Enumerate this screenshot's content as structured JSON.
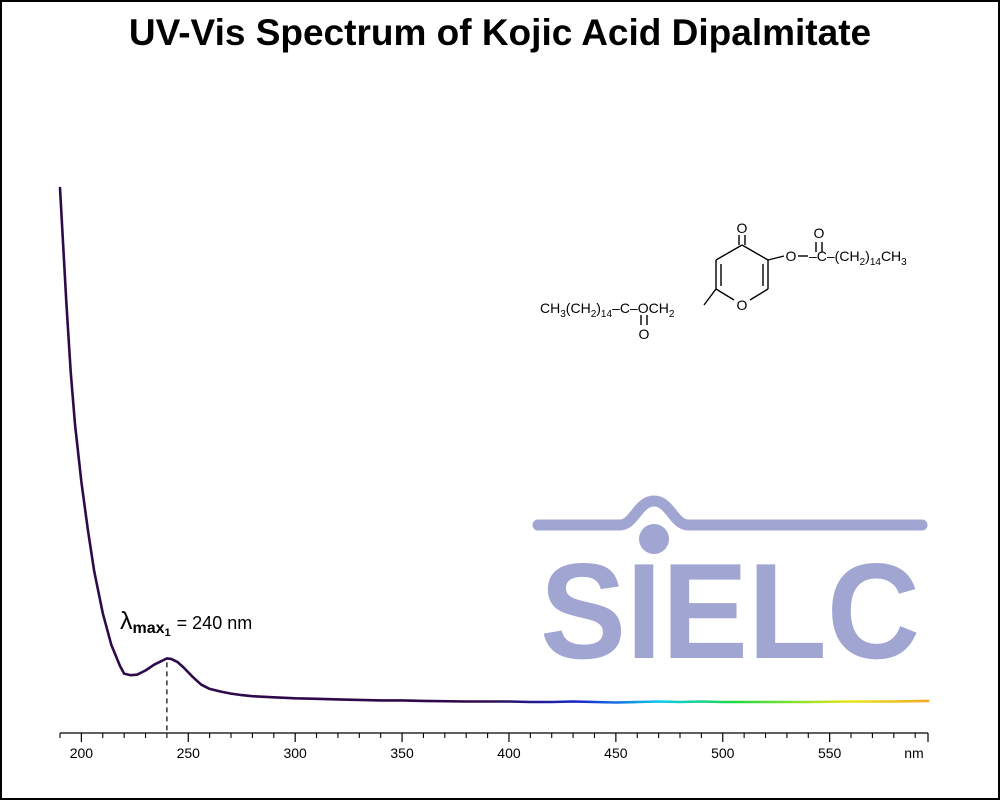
{
  "title": "UV-Vis Spectrum of Kojic Acid Dipalmitate",
  "chart_data": {
    "type": "line",
    "title": "UV-Vis Spectrum of Kojic Acid Dipalmitate",
    "xlabel": "nm",
    "ylabel": "",
    "xlim": [
      190,
      596
    ],
    "ylim": [
      0,
      1.0
    ],
    "x_ticks": [
      200,
      250,
      300,
      350,
      400,
      450,
      500,
      550
    ],
    "x_unit_label": "nm",
    "grid": false,
    "legend": "none",
    "line_colors": {
      "uv": "#2e0a4a",
      "blue": "#1a2bcf",
      "cyan": "#12c8ee",
      "green": "#22d844",
      "yellow": "#e6e61a",
      "orange": "#f5a623"
    },
    "series": [
      {
        "x": [
          190,
          193,
          195,
          197,
          200,
          203,
          206,
          210,
          214,
          218,
          220,
          223,
          226,
          230,
          234,
          238,
          240,
          242,
          245,
          248,
          252,
          256,
          260,
          265,
          270,
          275,
          280,
          290,
          300,
          310,
          320,
          330,
          340,
          350,
          360,
          380,
          400,
          410,
          420,
          430,
          440,
          450,
          460,
          470,
          480,
          490,
          500,
          520,
          540,
          560,
          580,
          596
        ],
        "y": [
          1.0,
          0.78,
          0.65,
          0.55,
          0.44,
          0.35,
          0.27,
          0.19,
          0.13,
          0.09,
          0.075,
          0.072,
          0.073,
          0.081,
          0.092,
          0.1,
          0.104,
          0.103,
          0.097,
          0.086,
          0.069,
          0.054,
          0.046,
          0.041,
          0.037,
          0.034,
          0.032,
          0.03,
          0.028,
          0.027,
          0.026,
          0.025,
          0.024,
          0.024,
          0.023,
          0.022,
          0.022,
          0.021,
          0.021,
          0.022,
          0.021,
          0.02,
          0.021,
          0.022,
          0.021,
          0.022,
          0.021,
          0.021,
          0.021,
          0.022,
          0.022,
          0.023
        ]
      }
    ],
    "annotations": [
      {
        "lambda": "λ",
        "sub_main": "max",
        "sub_index": "1",
        "text": "= 240 nm",
        "x": 240
      }
    ]
  },
  "structure": {
    "left_chain": [
      "CH",
      "3",
      "(CH",
      "2",
      ")",
      "14",
      "–C–OCH",
      "2"
    ],
    "right_chain": [
      "–C–(CH",
      "2",
      ")",
      "14",
      "CH",
      "3"
    ],
    "o_label": "O"
  },
  "logo": {
    "text": "SIELC",
    "color": "#a1a5d2"
  }
}
